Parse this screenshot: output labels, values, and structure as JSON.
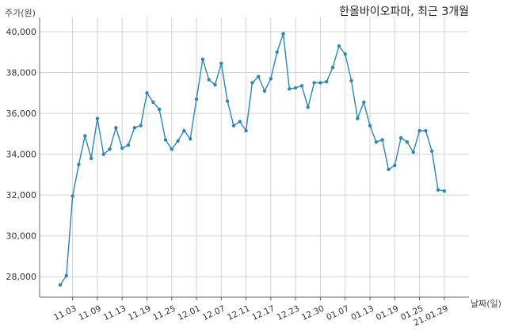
{
  "chart_data": {
    "type": "line",
    "title": "한올바이오파마, 최근 3개월",
    "ylabel": "주가(원)",
    "xlabel": "날짜(일)",
    "ylim": [
      27000,
      40700
    ],
    "yticks": [
      28000,
      30000,
      32000,
      34000,
      36000,
      38000,
      40000
    ],
    "ytick_labels": [
      "28,000",
      "30,000",
      "32,000",
      "34,000",
      "36,000",
      "38,000",
      "40,000"
    ],
    "xtick_labels": [
      "11.03",
      "11.09",
      "11.13",
      "11.19",
      "11.25",
      "12.01",
      "12.07",
      "12.11",
      "12.17",
      "12.23",
      "12.30",
      "01.07",
      "01.13",
      "01.19",
      "01.25",
      "21.01.29"
    ],
    "xtick_indices": [
      2,
      6,
      10,
      14,
      18,
      22,
      26,
      30,
      34,
      38,
      42,
      46,
      50,
      54,
      58,
      62
    ],
    "grid": true,
    "line_color": "#2f86b3",
    "series": [
      {
        "values": [
          27600,
          28050,
          31950,
          33500,
          34900,
          33800,
          35750,
          34000,
          34250,
          35300,
          34300,
          34450,
          35300,
          35400,
          37000,
          36550,
          36200,
          34700,
          34250,
          34650,
          35150,
          34750,
          36700,
          38650,
          37650,
          37400,
          38450,
          36600,
          35400,
          35600,
          35150,
          37500,
          37800,
          37100,
          37700,
          39000,
          39900,
          37200,
          37250,
          37350,
          36300,
          37500,
          37500,
          37550,
          38250,
          39300,
          38900,
          37600,
          35750,
          36550,
          35400,
          34600,
          34700,
          33250,
          33450,
          34800,
          34600,
          34100,
          35150,
          35150,
          34150,
          32250,
          32200
        ]
      }
    ]
  }
}
